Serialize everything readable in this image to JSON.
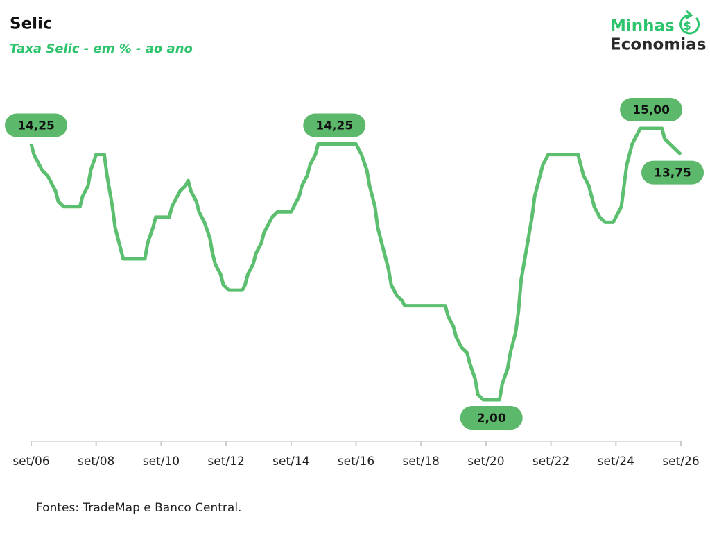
{
  "chart_data": {
    "type": "line",
    "title": "Selic",
    "subtitle": "Taxa Selic - em % - ao ano",
    "source": "Fontes: TradeMap e Banco Central.",
    "logo": {
      "top": "Minhas",
      "bottom": "Economias"
    },
    "color": "#5cbf6f",
    "label_color": "#5cb86b",
    "x": [
      "2006-09",
      "2006-10",
      "2006-12",
      "2007-01",
      "2007-03",
      "2007-04",
      "2007-06",
      "2007-07",
      "2007-09",
      "2008-03",
      "2008-04",
      "2008-06",
      "2008-07",
      "2008-09",
      "2008-12",
      "2009-01",
      "2009-03",
      "2009-04",
      "2009-06",
      "2009-07",
      "2010-03",
      "2010-04",
      "2010-06",
      "2010-07",
      "2010-12",
      "2011-01",
      "2011-03",
      "2011-04",
      "2011-06",
      "2011-07",
      "2011-08",
      "2011-10",
      "2011-11",
      "2012-01",
      "2012-03",
      "2012-04",
      "2012-05",
      "2012-07",
      "2012-08",
      "2012-10",
      "2013-03",
      "2013-04",
      "2013-05",
      "2013-07",
      "2013-08",
      "2013-10",
      "2013-11",
      "2014-01",
      "2014-02",
      "2014-04",
      "2014-09",
      "2014-10",
      "2014-12",
      "2015-01",
      "2015-03",
      "2015-04",
      "2015-06",
      "2015-07",
      "2016-01",
      "2016-09",
      "2016-10",
      "2016-11",
      "2017-01",
      "2017-02",
      "2017-04",
      "2017-05",
      "2017-07",
      "2017-09",
      "2017-10",
      "2017-12",
      "2018-02",
      "2018-03",
      "2019-06",
      "2019-07",
      "2019-09",
      "2019-10",
      "2019-12",
      "2020-02",
      "2020-03",
      "2020-05",
      "2020-06",
      "2020-08",
      "2020-11",
      "2021-02",
      "2021-03",
      "2021-05",
      "2021-06",
      "2021-08",
      "2021-09",
      "2021-10",
      "2021-12",
      "2022-02",
      "2022-03",
      "2022-05",
      "2022-06",
      "2022-08",
      "2023-07",
      "2023-08",
      "2023-09",
      "2023-11",
      "2023-12",
      "2024-01",
      "2024-03",
      "2024-05",
      "2024-08",
      "2024-09",
      "2024-11",
      "2024-12",
      "2025-01",
      "2025-03",
      "2025-05",
      "2025-06",
      "2025-10",
      "2026-02",
      "2026-03",
      "2026-05",
      "2026-07",
      "2026-09"
    ],
    "values": [
      14.25,
      13.75,
      13.25,
      13.0,
      12.75,
      12.5,
      12.0,
      11.5,
      11.25,
      11.25,
      11.75,
      12.25,
      13.0,
      13.75,
      13.75,
      12.75,
      11.25,
      10.25,
      9.25,
      8.75,
      8.75,
      9.5,
      10.25,
      10.75,
      10.75,
      11.25,
      11.75,
      12.0,
      12.25,
      12.5,
      12.0,
      11.5,
      11.0,
      10.5,
      9.75,
      9.0,
      8.5,
      8.0,
      7.5,
      7.25,
      7.25,
      7.5,
      8.0,
      8.5,
      9.0,
      9.5,
      10.0,
      10.5,
      10.75,
      11.0,
      11.0,
      11.25,
      11.75,
      12.25,
      12.75,
      13.25,
      13.75,
      14.25,
      14.25,
      14.25,
      14.0,
      13.75,
      13.0,
      12.25,
      11.25,
      10.25,
      9.25,
      8.25,
      7.5,
      7.0,
      6.75,
      6.5,
      6.5,
      6.0,
      5.5,
      5.0,
      4.5,
      4.25,
      3.75,
      3.0,
      2.25,
      2.0,
      2.0,
      2.0,
      2.75,
      3.5,
      4.25,
      5.25,
      6.25,
      7.75,
      9.25,
      10.75,
      11.75,
      12.75,
      13.25,
      13.75,
      13.75,
      13.25,
      12.75,
      12.25,
      11.75,
      11.25,
      10.75,
      10.5,
      10.5,
      10.75,
      11.25,
      12.25,
      13.25,
      14.25,
      14.75,
      15.0,
      15.0,
      15.0,
      14.5,
      14.25,
      14.0,
      13.75
    ],
    "value_labels": [
      "14,25",
      null,
      null,
      null,
      null,
      null,
      null,
      null,
      null,
      null,
      null,
      null,
      null,
      null,
      null,
      null,
      null,
      null,
      null,
      null,
      null,
      null,
      null,
      null,
      null,
      null,
      null,
      null,
      null,
      null,
      null,
      null,
      null,
      null,
      null,
      null,
      null,
      null,
      null,
      null,
      null,
      null,
      null,
      null,
      null,
      null,
      null,
      null,
      null,
      null,
      null,
      null,
      null,
      null,
      null,
      null,
      null,
      null,
      "14,25",
      null,
      null,
      null,
      null,
      null,
      null,
      null,
      null,
      null,
      null,
      null,
      null,
      null,
      null,
      null,
      null,
      null,
      null,
      null,
      null,
      null,
      null,
      null,
      "2,00",
      null,
      null,
      null,
      null,
      null,
      null,
      null,
      null,
      null,
      null,
      null,
      null,
      null,
      null,
      null,
      null,
      null,
      null,
      null,
      null,
      null,
      null,
      null,
      null,
      null,
      null,
      null,
      null,
      null,
      "15,00",
      null,
      null,
      null,
      null,
      "13,75"
    ],
    "xlim": [
      "2006-09",
      "2026-09"
    ],
    "xticks": [
      {
        "value": "2006-09",
        "label": "set/06"
      },
      {
        "value": "2008-09",
        "label": "set/08"
      },
      {
        "value": "2010-09",
        "label": "set/10"
      },
      {
        "value": "2012-09",
        "label": "set/12"
      },
      {
        "value": "2014-09",
        "label": "set/14"
      },
      {
        "value": "2016-09",
        "label": "set/16"
      },
      {
        "value": "2018-09",
        "label": "set/18"
      },
      {
        "value": "2020-09",
        "label": "set/20"
      },
      {
        "value": "2022-09",
        "label": "set/22"
      },
      {
        "value": "2024-09",
        "label": "set/24"
      },
      {
        "value": "2026-09",
        "label": "set/26"
      }
    ]
  }
}
